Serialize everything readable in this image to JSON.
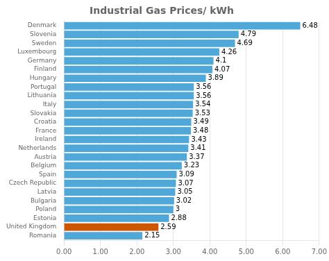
{
  "chart_data": {
    "type": "bar",
    "title": "Industrial Gas Prices/ kWh",
    "orientation": "horizontal",
    "categories": [
      "Denmark",
      "Slovenia",
      "Sweden",
      "Luxembourg",
      "Germany",
      "Finland",
      "Hungary",
      "Portugal",
      "Lithuania",
      "Italy",
      "Slovakia",
      "Croatia",
      "France",
      "Ireland",
      "Netherlands",
      "Austria",
      "Belgium",
      "Spain",
      "Czech Republic",
      "Latvia",
      "Bulgaria",
      "Poland",
      "Estonia",
      "United Kingdom",
      "Romania"
    ],
    "values": [
      6.48,
      4.79,
      4.69,
      4.26,
      4.1,
      4.07,
      3.89,
      3.56,
      3.56,
      3.54,
      3.53,
      3.49,
      3.48,
      3.43,
      3.41,
      3.37,
      3.23,
      3.09,
      3.07,
      3.05,
      3.02,
      3.0,
      2.88,
      2.59,
      2.15
    ],
    "colors": [
      "#4fa8d8",
      "#4fa8d8",
      "#4fa8d8",
      "#4fa8d8",
      "#4fa8d8",
      "#4fa8d8",
      "#4fa8d8",
      "#4fa8d8",
      "#4fa8d8",
      "#4fa8d8",
      "#4fa8d8",
      "#4fa8d8",
      "#4fa8d8",
      "#4fa8d8",
      "#4fa8d8",
      "#4fa8d8",
      "#4fa8d8",
      "#4fa8d8",
      "#4fa8d8",
      "#4fa8d8",
      "#4fa8d8",
      "#4fa8d8",
      "#4fa8d8",
      "#cc5500",
      "#4fa8d8"
    ],
    "xlim": [
      0,
      7.0
    ],
    "xticks": [
      {
        "value": 0.0,
        "label": "0.00"
      },
      {
        "value": 1.0,
        "label": "1.00"
      },
      {
        "value": 2.0,
        "label": "2.00"
      },
      {
        "value": 3.0,
        "label": "3.00"
      },
      {
        "value": 4.0,
        "label": "4.00"
      },
      {
        "value": 5.0,
        "label": "5.00"
      },
      {
        "value": 6.0,
        "label": "6.00"
      },
      {
        "value": 7.0,
        "label": "7.00"
      }
    ],
    "grid": true,
    "data_labels": true
  }
}
